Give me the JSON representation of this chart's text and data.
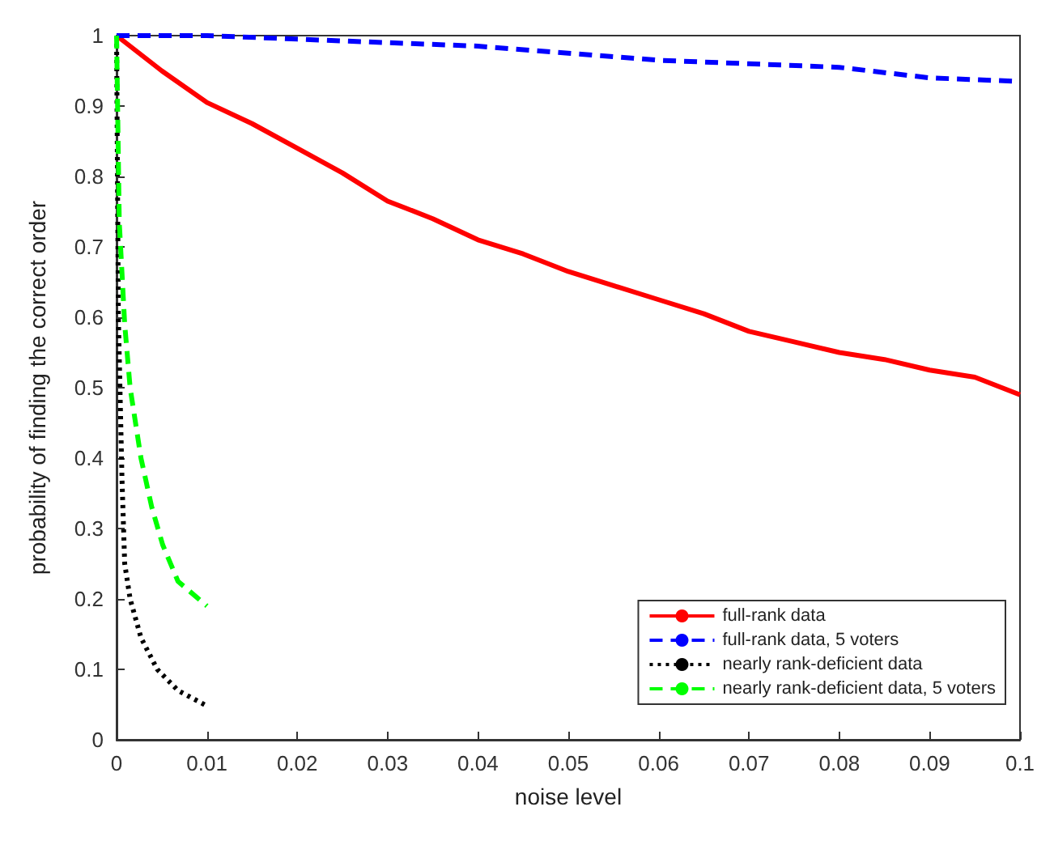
{
  "chart_data": {
    "type": "line",
    "xlabel": "noise level",
    "ylabel": "probability of finding the correct order",
    "xlim": [
      0,
      0.1
    ],
    "ylim": [
      0,
      1
    ],
    "xticks": [
      0,
      0.01,
      0.02,
      0.03,
      0.04,
      0.05,
      0.06,
      0.07,
      0.08,
      0.09,
      0.1
    ],
    "yticks": [
      0,
      0.1,
      0.2,
      0.3,
      0.4,
      0.5,
      0.6,
      0.7,
      0.8,
      0.9,
      1
    ],
    "grid": false,
    "legend": "bottom right",
    "marker": "none",
    "series": [
      {
        "name": "full-rank data",
        "color": "#ff0000",
        "line_style": "solid",
        "x": [
          0,
          0.005,
          0.01,
          0.015,
          0.02,
          0.025,
          0.03,
          0.035,
          0.04,
          0.045,
          0.05,
          0.055,
          0.06,
          0.065,
          0.07,
          0.075,
          0.08,
          0.085,
          0.09,
          0.095,
          0.1
        ],
        "values": [
          1,
          0.95,
          0.905,
          0.875,
          0.84,
          0.805,
          0.765,
          0.74,
          0.71,
          0.69,
          0.665,
          0.645,
          0.625,
          0.605,
          0.58,
          0.565,
          0.55,
          0.54,
          0.525,
          0.515,
          0.49
        ]
      },
      {
        "name": "full-rank data, 5 voters",
        "color": "#0000ff",
        "line_style": "dashed",
        "x": [
          0,
          0.01,
          0.02,
          0.03,
          0.04,
          0.05,
          0.06,
          0.07,
          0.08,
          0.09,
          0.1
        ],
        "values": [
          1,
          1,
          0.995,
          0.99,
          0.985,
          0.975,
          0.965,
          0.96,
          0.955,
          0.94,
          0.935
        ]
      },
      {
        "name": "nearly rank-deficient data",
        "color": "#000000",
        "line_style": "dotted",
        "x": [
          0,
          0.0001,
          0.0002,
          0.0006,
          0.0009,
          0.0015,
          0.0027,
          0.0045,
          0.0068,
          0.01
        ],
        "values": [
          1,
          0.8,
          0.6,
          0.37,
          0.25,
          0.2,
          0.145,
          0.1,
          0.07,
          0.048
        ]
      },
      {
        "name": "nearly rank-deficient data, 5 voters",
        "color": "#00ff00",
        "line_style": "dashed",
        "x": [
          0,
          0.0003,
          0.0009,
          0.0015,
          0.0027,
          0.0039,
          0.0051,
          0.0068,
          0.01
        ],
        "values": [
          1,
          0.735,
          0.59,
          0.5,
          0.4,
          0.33,
          0.277,
          0.225,
          0.19
        ]
      }
    ]
  }
}
